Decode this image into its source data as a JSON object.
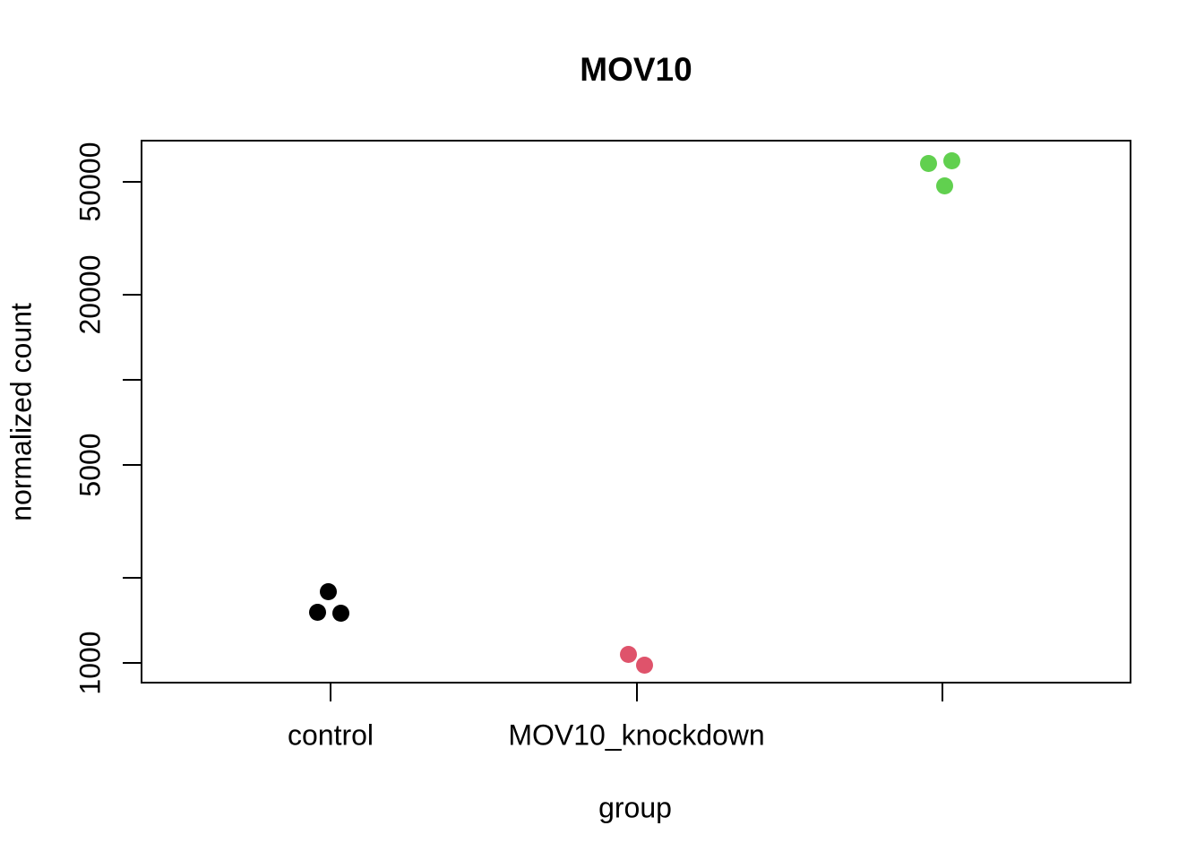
{
  "chart_data": {
    "type": "scatter",
    "title": "MOV10",
    "xlabel": "group",
    "ylabel": "normalized count",
    "y_scale": "log10",
    "ylim": [
      830,
      70000
    ],
    "grid": false,
    "legend": false,
    "background_color": "#FFFFFF",
    "axis_color": "#000000",
    "y_ticks": [
      {
        "value": 1000,
        "label": "1000"
      },
      {
        "value": 2000,
        "label": ""
      },
      {
        "value": 5000,
        "label": "5000"
      },
      {
        "value": 10000,
        "label": ""
      },
      {
        "value": 20000,
        "label": "20000"
      },
      {
        "value": 50000,
        "label": "50000"
      }
    ],
    "groups": [
      {
        "x_index": 1,
        "tick_label": "control",
        "color": "#000000",
        "points": [
          {
            "value": 1780,
            "dx": -3
          },
          {
            "value": 1505,
            "dx": -15
          },
          {
            "value": 1495,
            "dx": 11
          }
        ]
      },
      {
        "x_index": 2,
        "tick_label": "MOV10_knockdown",
        "color": "#DF536B",
        "points": [
          {
            "value": 1075,
            "dx": -9
          },
          {
            "value": 985,
            "dx": 9
          }
        ]
      },
      {
        "x_index": 3,
        "tick_label": "",
        "color": "#61D04F",
        "points": [
          {
            "value": 57900,
            "dx": -16
          },
          {
            "value": 59600,
            "dx": 10
          },
          {
            "value": 48600,
            "dx": 2
          }
        ]
      }
    ]
  }
}
